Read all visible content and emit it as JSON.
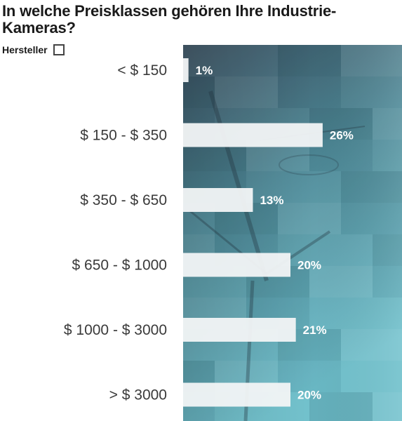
{
  "title": "In welche Preisklassen gehören Ihre Industrie-Kameras?",
  "legend": {
    "label": "Hersteller"
  },
  "colors": {
    "bar": "#f2f4f5",
    "panel_top": "#3d5363",
    "panel_bottom": "#6fc0cc"
  },
  "chart_data": {
    "type": "bar",
    "orientation": "horizontal",
    "categories": [
      "< $ 150",
      "$ 150 - $ 350",
      "$ 350 - $ 650",
      "$ 650 - $ 1000",
      "$ 1000 - $ 3000",
      "> $ 3000"
    ],
    "series": [
      {
        "name": "Hersteller",
        "values": [
          1,
          26,
          13,
          20,
          21,
          20
        ]
      }
    ],
    "value_labels": [
      "1%",
      "26%",
      "13%",
      "20%",
      "21%",
      "20%"
    ],
    "unit": "%",
    "xlim": [
      0,
      40
    ],
    "grid": false,
    "legend_position": "top-left"
  }
}
